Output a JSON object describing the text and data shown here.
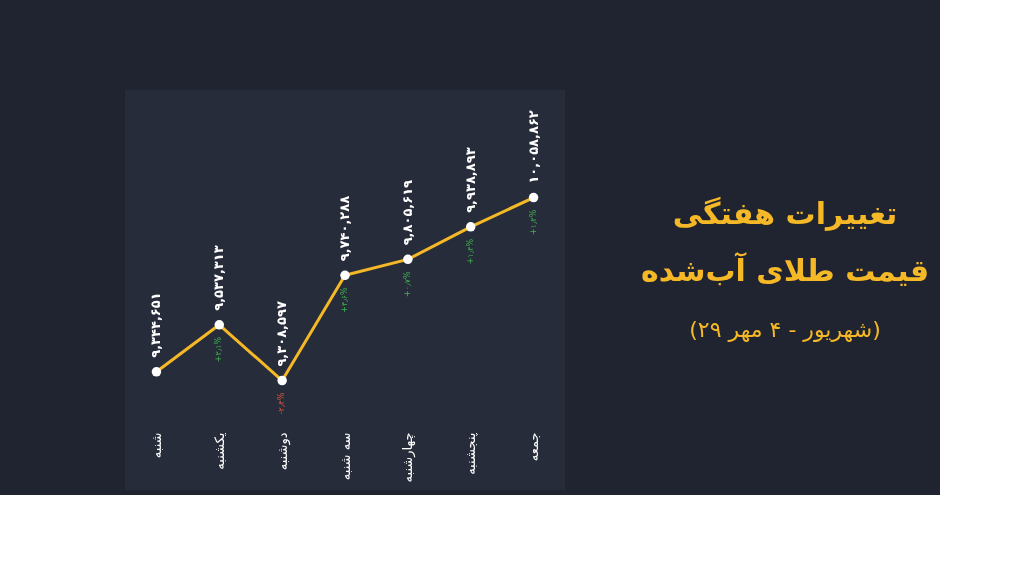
{
  "chart_data": {
    "type": "line",
    "title": "تغییرات هفتگی\nقیمت طلای آب‌شده",
    "subtitle": "(۲۹ شهریور - ۴ مهر)",
    "categories": [
      "شنبه",
      "یکشنبه",
      "دوشنبه",
      "سه شنبه",
      "چهارشنبه",
      "پنجشنبه",
      "جمعه"
    ],
    "series": [
      {
        "color": "#f5b826",
        "values": [
          9344651,
          9537313,
          9308597,
          9740288,
          9805619,
          9938893,
          10058862
        ],
        "value_labels": [
          "۹,۳۴۴,۶۵۱",
          "۹,۵۳۷,۳۱۳",
          "۹,۳۰۸,۵۹۷",
          "۹,۷۴۰,۲۸۸",
          "۹,۸۰۵,۶۱۹",
          "۹,۹۳۸,۸۹۳",
          "۱۰,۰۵۸,۸۶۲"
        ]
      }
    ],
    "annotations": [
      {
        "text": "+۲٫۱%",
        "x": "یکشنبه",
        "y": 9537313
      },
      {
        "text": "-۲٫۴%",
        "x": "دوشنبه",
        "y": 9308597
      },
      {
        "text": "+۴٫۶%",
        "x": "سه شنبه",
        "y": 9740288
      },
      {
        "text": "+۰٫۷%",
        "x": "چهارشنبه",
        "y": 9805619
      },
      {
        "text": "+۱٫۴%",
        "x": "پنجشنبه",
        "y": 9938893
      },
      {
        "text": "+۱٫۲%",
        "x": "جمعه",
        "y": 10058862
      }
    ],
    "ylim": [
      8860000,
      10500000
    ],
    "tick_labels": "x",
    "marker": "circle",
    "grid": false
  }
}
